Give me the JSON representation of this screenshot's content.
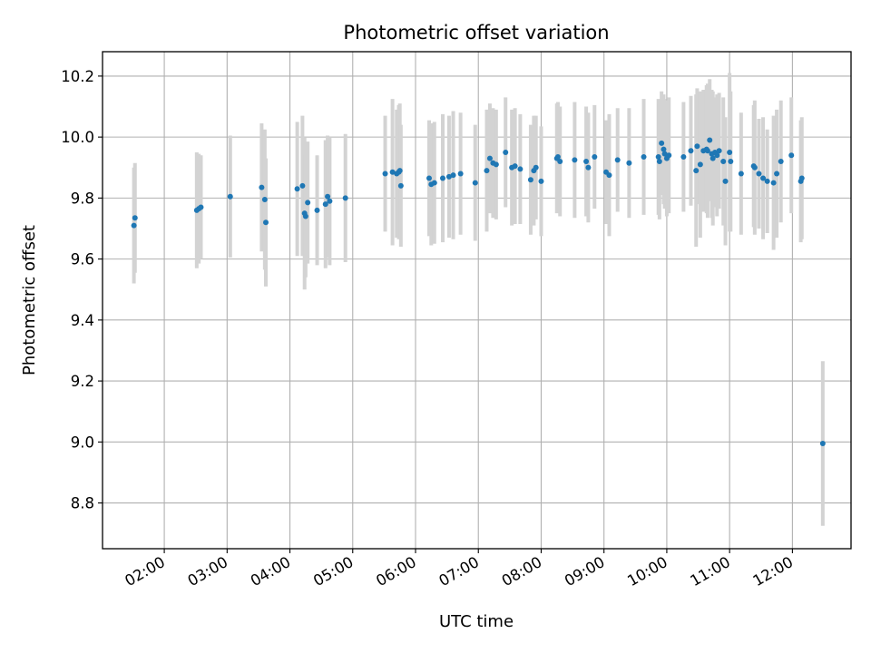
{
  "chart_data": {
    "type": "scatter",
    "title": "Photometric offset variation",
    "xlabel": "UTC time",
    "ylabel": "Photometric offset",
    "x_unit": "hours UTC",
    "xlim": [
      "01:01",
      "12:56"
    ],
    "ylim": [
      8.65,
      10.28
    ],
    "x_ticks": [
      "02:00",
      "03:00",
      "04:00",
      "05:00",
      "06:00",
      "07:00",
      "08:00",
      "09:00",
      "10:00",
      "11:00",
      "12:00"
    ],
    "y_ticks": [
      "8.8",
      "9.0",
      "9.2",
      "9.4",
      "9.6",
      "9.8",
      "10.0",
      "10.2"
    ],
    "grid": true,
    "legend": "none",
    "colors": {
      "points": "#1f77b4",
      "error_bars": "#d3d3d3"
    },
    "series": [
      {
        "x": [
          "01:31",
          "01:32",
          "02:31",
          "02:33",
          "02:35",
          "03:03",
          "03:33",
          "03:36",
          "03:37",
          "04:07",
          "04:12",
          "04:14",
          "04:15",
          "04:17",
          "04:26",
          "04:34",
          "04:36",
          "04:38",
          "04:53",
          "05:31",
          "05:38",
          "05:42",
          "05:44",
          "05:45",
          "05:46",
          "06:13",
          "06:15",
          "06:18",
          "06:26",
          "06:32",
          "06:36",
          "06:43",
          "06:57",
          "07:08",
          "07:11",
          "07:14",
          "07:17",
          "07:26",
          "07:32",
          "07:35",
          "07:40",
          "07:50",
          "07:53",
          "07:55",
          "08:00",
          "08:15",
          "08:16",
          "08:18",
          "08:32",
          "08:43",
          "08:45",
          "08:51",
          "09:02",
          "09:05",
          "09:13",
          "09:24",
          "09:38",
          "09:52",
          "09:53",
          "09:55",
          "09:57",
          "09:58",
          "10:00",
          "10:02",
          "10:16",
          "10:23",
          "10:28",
          "10:29",
          "10:32",
          "10:35",
          "10:38",
          "10:39",
          "10:41",
          "10:43",
          "10:44",
          "10:46",
          "10:48",
          "10:50",
          "10:54",
          "10:56",
          "11:00",
          "11:01",
          "11:11",
          "11:23",
          "11:24",
          "11:28",
          "11:32",
          "11:36",
          "11:42",
          "11:45",
          "11:49",
          "11:59",
          "12:08",
          "12:09",
          "12:29"
        ],
        "y": [
          9.71,
          9.735,
          9.76,
          9.765,
          9.77,
          9.805,
          9.835,
          9.795,
          9.72,
          9.83,
          9.84,
          9.75,
          9.74,
          9.785,
          9.76,
          9.78,
          9.805,
          9.79,
          9.8,
          9.88,
          9.885,
          9.88,
          9.885,
          9.89,
          9.84,
          9.865,
          9.845,
          9.85,
          9.865,
          9.87,
          9.875,
          9.88,
          9.85,
          9.89,
          9.93,
          9.915,
          9.91,
          9.95,
          9.9,
          9.905,
          9.895,
          9.86,
          9.89,
          9.9,
          9.855,
          9.93,
          9.935,
          9.92,
          9.925,
          9.92,
          9.9,
          9.935,
          9.885,
          9.875,
          9.925,
          9.915,
          9.935,
          9.935,
          9.92,
          9.98,
          9.96,
          9.945,
          9.93,
          9.94,
          9.935,
          9.955,
          9.89,
          9.97,
          9.91,
          9.955,
          9.96,
          9.955,
          9.99,
          9.945,
          9.93,
          9.95,
          9.94,
          9.955,
          9.92,
          9.855,
          9.95,
          9.92,
          9.88,
          9.905,
          9.9,
          9.88,
          9.865,
          9.855,
          9.85,
          9.88,
          9.92,
          9.94,
          9.855,
          9.865,
          8.995
        ],
        "err": [
          0.19,
          0.18,
          0.19,
          0.18,
          0.17,
          0.2,
          0.21,
          0.23,
          0.21,
          0.22,
          0.23,
          0.25,
          0.2,
          0.2,
          0.18,
          0.21,
          0.2,
          0.21,
          0.21,
          0.19,
          0.24,
          0.21,
          0.22,
          0.22,
          0.2,
          0.19,
          0.2,
          0.2,
          0.21,
          0.2,
          0.21,
          0.2,
          0.19,
          0.2,
          0.18,
          0.18,
          0.18,
          0.18,
          0.19,
          0.19,
          0.18,
          0.18,
          0.18,
          0.17,
          0.18,
          0.18,
          0.18,
          0.18,
          0.19,
          0.18,
          0.18,
          0.17,
          0.17,
          0.2,
          0.17,
          0.18,
          0.19,
          0.19,
          0.19,
          0.17,
          0.18,
          0.18,
          0.19,
          0.19,
          0.18,
          0.18,
          0.25,
          0.19,
          0.24,
          0.2,
          0.21,
          0.22,
          0.2,
          0.21,
          0.22,
          0.18,
          0.2,
          0.19,
          0.21,
          0.21,
          0.26,
          0.23,
          0.2,
          0.2,
          0.22,
          0.18,
          0.2,
          0.17,
          0.22,
          0.21,
          0.2,
          0.19,
          0.2,
          0.2,
          0.27
        ]
      }
    ]
  }
}
